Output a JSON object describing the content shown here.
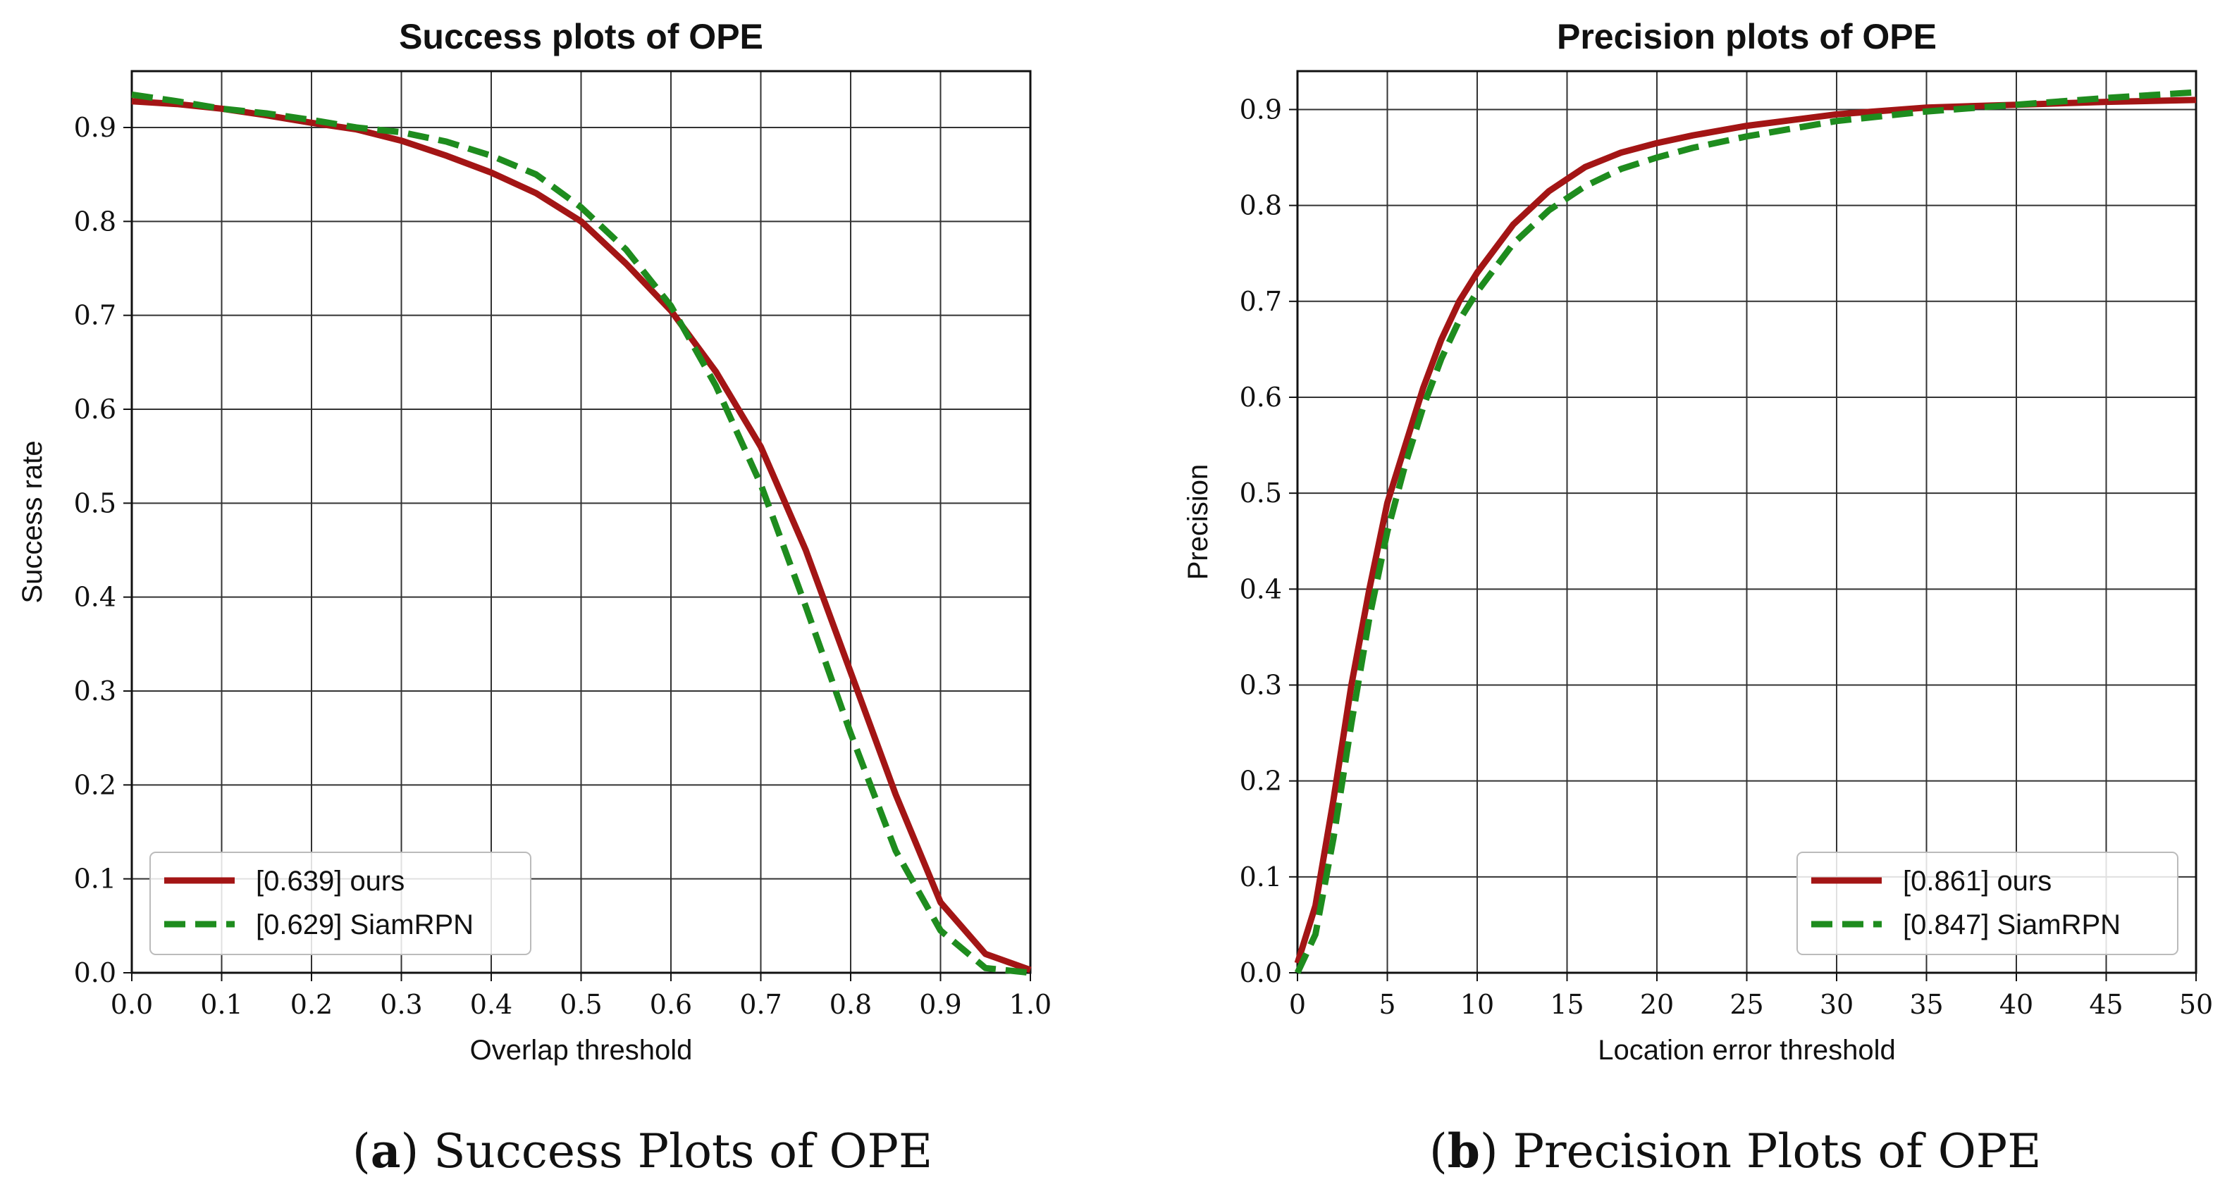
{
  "chart_data": [
    {
      "type": "line",
      "title": "Success plots of OPE",
      "xlabel": "Overlap threshold",
      "ylabel": "Success rate",
      "xlim": [
        0.0,
        1.0
      ],
      "ylim": [
        0.0,
        0.96
      ],
      "xticks": [
        "0.0",
        "0.1",
        "0.2",
        "0.3",
        "0.4",
        "0.5",
        "0.6",
        "0.7",
        "0.8",
        "0.9",
        "1.0"
      ],
      "yticks": [
        "0.0",
        "0.1",
        "0.2",
        "0.3",
        "0.4",
        "0.5",
        "0.6",
        "0.7",
        "0.8",
        "0.9"
      ],
      "grid": true,
      "legend_position": "bottom-left",
      "caption_label": "a",
      "caption_text": "Success Plots of OPE",
      "series": [
        {
          "name": "[0.639] ours",
          "color": "#a31515",
          "style": "solid",
          "x": [
            0.0,
            0.05,
            0.1,
            0.15,
            0.2,
            0.25,
            0.3,
            0.35,
            0.4,
            0.45,
            0.5,
            0.55,
            0.6,
            0.65,
            0.7,
            0.75,
            0.8,
            0.85,
            0.9,
            0.95,
            1.0
          ],
          "y": [
            0.928,
            0.925,
            0.92,
            0.913,
            0.905,
            0.898,
            0.886,
            0.87,
            0.852,
            0.83,
            0.8,
            0.755,
            0.705,
            0.64,
            0.56,
            0.45,
            0.32,
            0.19,
            0.075,
            0.02,
            0.003
          ]
        },
        {
          "name": "[0.629] SiamRPN",
          "color": "#1e8c1e",
          "style": "dashed",
          "x": [
            0.0,
            0.05,
            0.1,
            0.15,
            0.2,
            0.25,
            0.3,
            0.35,
            0.4,
            0.45,
            0.5,
            0.55,
            0.6,
            0.65,
            0.7,
            0.75,
            0.8,
            0.85,
            0.9,
            0.95,
            1.0
          ],
          "y": [
            0.935,
            0.928,
            0.92,
            0.915,
            0.908,
            0.9,
            0.895,
            0.885,
            0.87,
            0.85,
            0.815,
            0.77,
            0.71,
            0.625,
            0.52,
            0.39,
            0.255,
            0.13,
            0.045,
            0.005,
            0.0
          ]
        }
      ]
    },
    {
      "type": "line",
      "title": "Precision plots of OPE",
      "xlabel": "Location error threshold",
      "ylabel": "Precision",
      "xlim": [
        0,
        50
      ],
      "ylim": [
        0.0,
        0.94
      ],
      "xticks": [
        "0",
        "5",
        "10",
        "15",
        "20",
        "25",
        "30",
        "35",
        "40",
        "45",
        "50"
      ],
      "yticks": [
        "0.0",
        "0.1",
        "0.2",
        "0.3",
        "0.4",
        "0.5",
        "0.6",
        "0.7",
        "0.8",
        "0.9"
      ],
      "grid": true,
      "legend_position": "bottom-right",
      "caption_label": "b",
      "caption_text": "Precision Plots of OPE",
      "series": [
        {
          "name": "[0.861] ours",
          "color": "#a31515",
          "style": "solid",
          "x": [
            0,
            1,
            2,
            3,
            4,
            5,
            6,
            7,
            8,
            9,
            10,
            12,
            14,
            16,
            18,
            20,
            22,
            25,
            30,
            35,
            40,
            45,
            50
          ],
          "y": [
            0.01,
            0.07,
            0.18,
            0.3,
            0.4,
            0.49,
            0.55,
            0.61,
            0.66,
            0.7,
            0.73,
            0.78,
            0.815,
            0.84,
            0.855,
            0.865,
            0.873,
            0.883,
            0.895,
            0.902,
            0.905,
            0.908,
            0.91
          ]
        },
        {
          "name": "[0.847] SiamRPN",
          "color": "#1e8c1e",
          "style": "dashed",
          "x": [
            0,
            1,
            2,
            3,
            4,
            5,
            6,
            7,
            8,
            9,
            10,
            12,
            14,
            16,
            18,
            20,
            22,
            25,
            30,
            35,
            40,
            45,
            50
          ],
          "y": [
            0.0,
            0.04,
            0.14,
            0.26,
            0.37,
            0.46,
            0.53,
            0.59,
            0.64,
            0.68,
            0.71,
            0.76,
            0.795,
            0.82,
            0.838,
            0.85,
            0.86,
            0.872,
            0.888,
            0.898,
            0.905,
            0.912,
            0.918
          ]
        }
      ]
    }
  ]
}
